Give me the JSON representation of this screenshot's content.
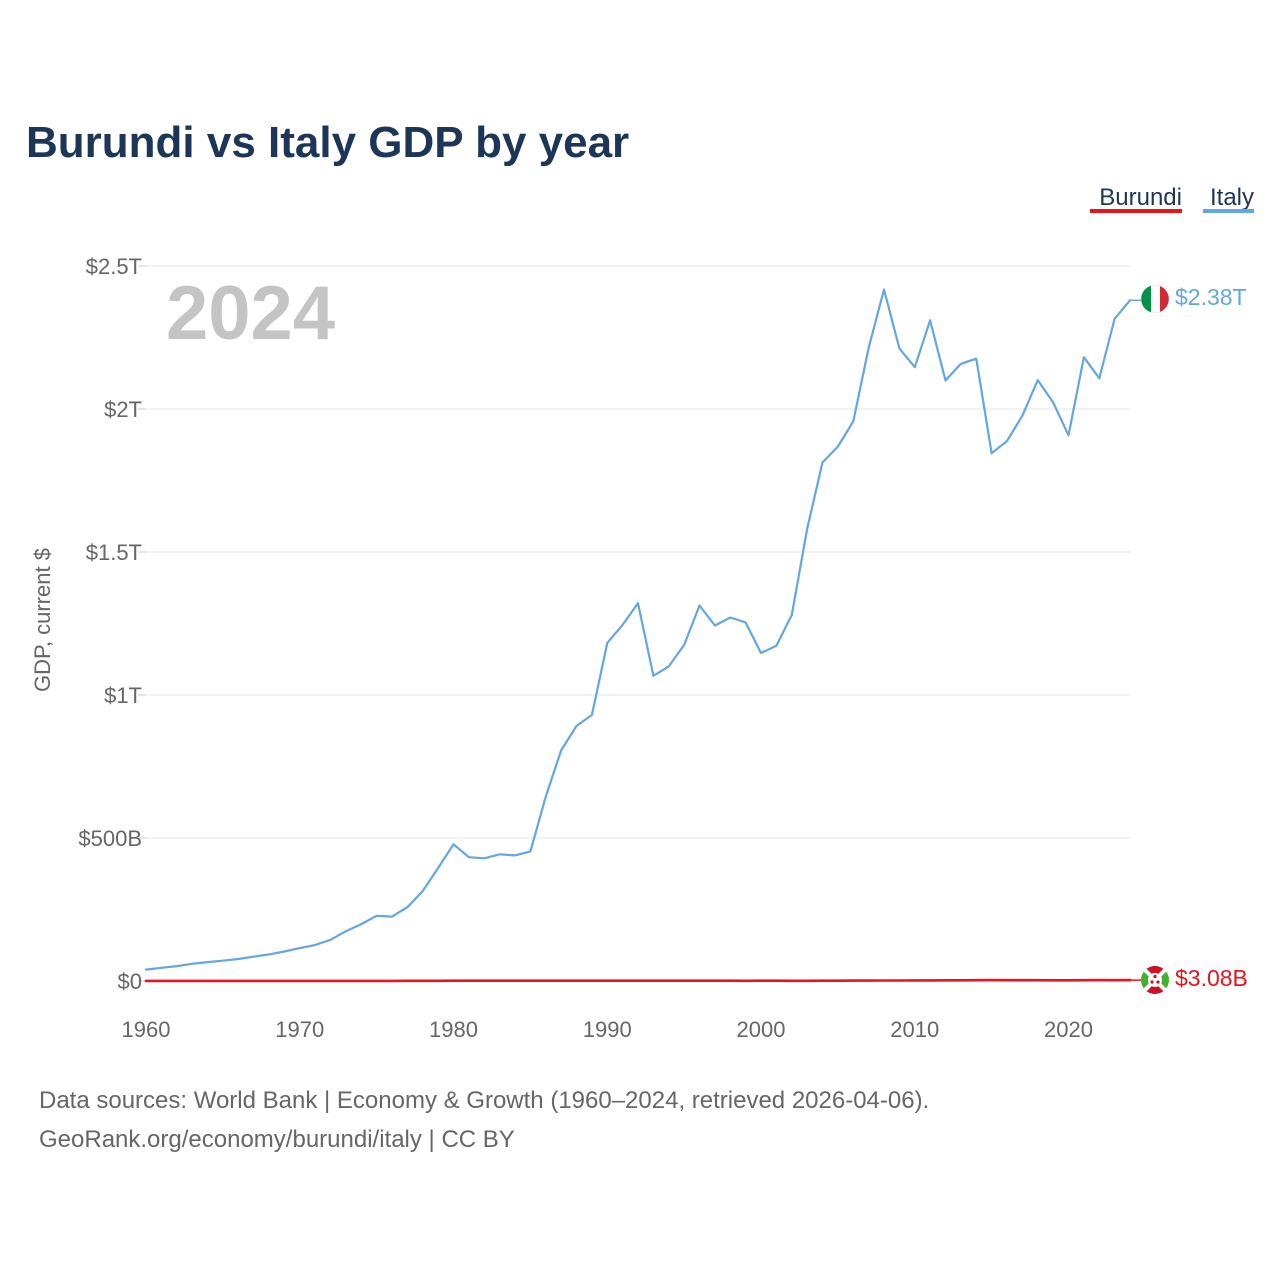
{
  "colors": {
    "burundi": "#e8141c",
    "italy": "#63a6e0",
    "title": "#1d3557",
    "muted": "#666666",
    "year": "#c4c4c4",
    "grid": "#e6e6e6"
  },
  "chart_data": {
    "type": "line",
    "title": "Burundi vs Italy GDP by year",
    "xlabel": "",
    "ylabel": "GDP, current $",
    "xlim": [
      1960,
      2024
    ],
    "ylim": [
      0,
      2500000000000
    ],
    "x_ticks": [
      {
        "value": 1960,
        "label": "1960"
      },
      {
        "value": 1970,
        "label": "1970"
      },
      {
        "value": 1980,
        "label": "1980"
      },
      {
        "value": 1990,
        "label": "1990"
      },
      {
        "value": 2000,
        "label": "2000"
      },
      {
        "value": 2010,
        "label": "2010"
      },
      {
        "value": 2020,
        "label": "2020"
      }
    ],
    "y_ticks": [
      {
        "value": 0,
        "label": "$0"
      },
      {
        "value": 500000000000,
        "label": "$500B"
      },
      {
        "value": 1000000000000,
        "label": "$1T"
      },
      {
        "value": 1500000000000,
        "label": "$1.5T"
      },
      {
        "value": 2000000000000,
        "label": "$2T"
      },
      {
        "value": 2500000000000,
        "label": "$2.5T"
      }
    ],
    "year_label": "2024",
    "legend": [
      "Burundi",
      "Italy"
    ],
    "end_labels": {
      "burundi": "$3.08B",
      "italy": "$2.38T"
    },
    "x": [
      1960,
      1961,
      1962,
      1963,
      1964,
      1965,
      1966,
      1967,
      1968,
      1969,
      1970,
      1971,
      1972,
      1973,
      1974,
      1975,
      1976,
      1977,
      1978,
      1979,
      1980,
      1981,
      1982,
      1983,
      1984,
      1985,
      1986,
      1987,
      1988,
      1989,
      1990,
      1991,
      1992,
      1993,
      1994,
      1995,
      1996,
      1997,
      1998,
      1999,
      2000,
      2001,
      2002,
      2003,
      2004,
      2005,
      2006,
      2007,
      2008,
      2009,
      2010,
      2011,
      2012,
      2013,
      2014,
      2015,
      2016,
      2017,
      2018,
      2019,
      2020,
      2021,
      2022,
      2023,
      2024
    ],
    "series": [
      {
        "name": "Burundi",
        "key": "burundi",
        "values": [
          200000000.0,
          200000000.0,
          200000000.0,
          200000000.0,
          200000000.0,
          200000000.0,
          200000000.0,
          200000000.0,
          300000000.0,
          300000000.0,
          300000000.0,
          300000000.0,
          300000000.0,
          300000000.0,
          400000000.0,
          400000000.0,
          500000000.0,
          600000000.0,
          700000000.0,
          800000000.0,
          900000000.0,
          1000000000.0,
          1000000000.0,
          1100000000.0,
          1000000000.0,
          1200000000.0,
          1200000000.0,
          1100000000.0,
          1000000000.0,
          1000000000.0,
          1100000000.0,
          1200000000.0,
          1100000000.0,
          900000000.0,
          900000000.0,
          1000000000.0,
          900000000.0,
          900000000.0,
          900000000.0,
          800000000.0,
          900000000.0,
          900000000.0,
          800000000.0,
          800000000.0,
          900000000.0,
          1100000000.0,
          1300000000.0,
          1400000000.0,
          1600000000.0,
          1800000000.0,
          2000000000.0,
          2200000000.0,
          2300000000.0,
          2500000000.0,
          2700000000.0,
          3100000000.0,
          2700000000.0,
          2700000000.0,
          2700000000.0,
          2600000000.0,
          2600000000.0,
          2800000000.0,
          3300000000.0,
          2700000000.0,
          3080000000.0
        ]
      },
      {
        "name": "Italy",
        "key": "italy",
        "values": [
          40000000000.0,
          46000000000.0,
          52000000000.0,
          60000000000.0,
          66000000000.0,
          71000000000.0,
          77000000000.0,
          85000000000.0,
          93000000000.0,
          103000000000.0,
          115000000000.0,
          126000000000.0,
          144000000000.0,
          174000000000.0,
          199000000000.0,
          228000000000.0,
          225000000000.0,
          258000000000.0,
          315000000000.0,
          395000000000.0,
          478000000000.0,
          433000000000.0,
          429000000000.0,
          443000000000.0,
          439000000000.0,
          453000000000.0,
          645000000000.0,
          806000000000.0,
          892000000000.0,
          930000000000.0,
          1182000000000.0,
          1245000000000.0,
          1321000000000.0,
          1067000000000.0,
          1100000000000.0,
          1175000000000.0,
          1313000000000.0,
          1243000000000.0,
          1271000000000.0,
          1254000000000.0,
          1147000000000.0,
          1172000000000.0,
          1280000000000.0,
          1580000000000.0,
          1813000000000.0,
          1869000000000.0,
          1957000000000.0,
          2213000000000.0,
          2418000000000.0,
          2212000000000.0,
          2146000000000.0,
          2310000000000.0,
          2100000000000.0,
          2158000000000.0,
          2176000000000.0,
          1845000000000.0,
          1888000000000.0,
          1977000000000.0,
          2101000000000.0,
          2023000000000.0,
          1908000000000.0,
          2181000000000.0,
          2107000000000.0,
          2315000000000.0,
          2380000000000.0
        ]
      }
    ]
  },
  "source": {
    "line1": "Data sources: World Bank | Economy & Growth (1960–2024, retrieved 2026-04-06).",
    "line2": "GeoRank.org/economy/burundi/italy | CC BY"
  }
}
